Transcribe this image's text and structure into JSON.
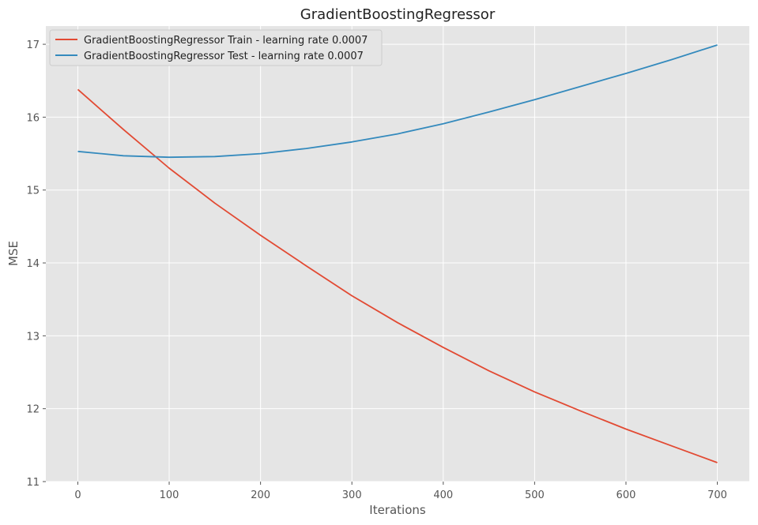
{
  "chart_data": {
    "type": "line",
    "title": "GradientBoostingRegressor",
    "xlabel": "Iterations",
    "ylabel": "MSE",
    "xlim": [
      -35,
      735
    ],
    "ylim": [
      11,
      17.25
    ],
    "xticks": [
      0,
      100,
      200,
      300,
      400,
      500,
      600,
      700
    ],
    "yticks": [
      11,
      12,
      13,
      14,
      15,
      16,
      17
    ],
    "grid": true,
    "legend_position": "top-left",
    "colors": {
      "plot_bg": "#e5e5e5",
      "grid": "#ffffff"
    },
    "series": [
      {
        "name": "GradientBoostingRegressor Train - learning rate 0.0007",
        "color": "#e24a33",
        "x": [
          0,
          50,
          100,
          150,
          200,
          250,
          300,
          350,
          400,
          450,
          500,
          550,
          600,
          650,
          700
        ],
        "y": [
          16.38,
          15.83,
          15.3,
          14.82,
          14.38,
          13.96,
          13.55,
          13.18,
          12.84,
          12.52,
          12.23,
          11.97,
          11.72,
          11.49,
          11.26
        ]
      },
      {
        "name": "GradientBoostingRegressor Test - learning rate 0.0007",
        "color": "#348abd",
        "x": [
          0,
          50,
          100,
          150,
          200,
          250,
          300,
          350,
          400,
          450,
          500,
          550,
          600,
          650,
          700
        ],
        "y": [
          15.53,
          15.47,
          15.45,
          15.46,
          15.5,
          15.57,
          15.66,
          15.77,
          15.91,
          16.07,
          16.24,
          16.42,
          16.6,
          16.79,
          16.99
        ]
      }
    ]
  }
}
